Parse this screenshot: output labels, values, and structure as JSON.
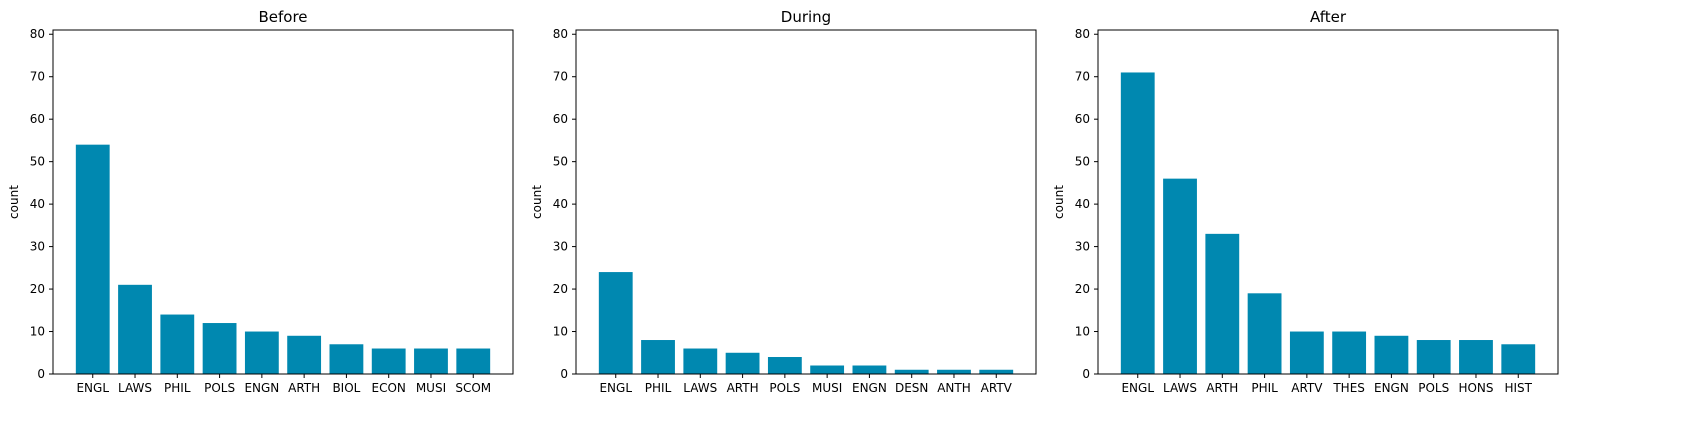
{
  "chart_data": [
    {
      "type": "bar",
      "title": "Before",
      "xlabel": "",
      "ylabel": "count",
      "ylim": [
        0,
        81
      ],
      "yticks": [
        0,
        10,
        20,
        30,
        40,
        50,
        60,
        70,
        80
      ],
      "categories": [
        "ENGL",
        "LAWS",
        "PHIL",
        "POLS",
        "ENGN",
        "ARTH",
        "BIOL",
        "ECON",
        "MUSI",
        "SCOM"
      ],
      "values": [
        54,
        21,
        14,
        12,
        10,
        9,
        7,
        6,
        6,
        6
      ],
      "color": "#0088b0"
    },
    {
      "type": "bar",
      "title": "During",
      "xlabel": "",
      "ylabel": "count",
      "ylim": [
        0,
        81
      ],
      "yticks": [
        0,
        10,
        20,
        30,
        40,
        50,
        60,
        70,
        80
      ],
      "categories": [
        "ENGL",
        "PHIL",
        "LAWS",
        "ARTH",
        "POLS",
        "MUSI",
        "ENGN",
        "DESN",
        "ANTH",
        "ARTV"
      ],
      "values": [
        24,
        8,
        6,
        5,
        4,
        2,
        2,
        1,
        1,
        1
      ],
      "color": "#0088b0"
    },
    {
      "type": "bar",
      "title": "After",
      "xlabel": "",
      "ylabel": "count",
      "ylim": [
        0,
        81
      ],
      "yticks": [
        0,
        10,
        20,
        30,
        40,
        50,
        60,
        70,
        80
      ],
      "categories": [
        "ENGL",
        "LAWS",
        "ARTH",
        "PHIL",
        "ARTV",
        "THES",
        "ENGN",
        "POLS",
        "HONS",
        "HIST"
      ],
      "values": [
        71,
        46,
        33,
        19,
        10,
        10,
        9,
        8,
        8,
        7
      ],
      "color": "#0088b0"
    }
  ]
}
